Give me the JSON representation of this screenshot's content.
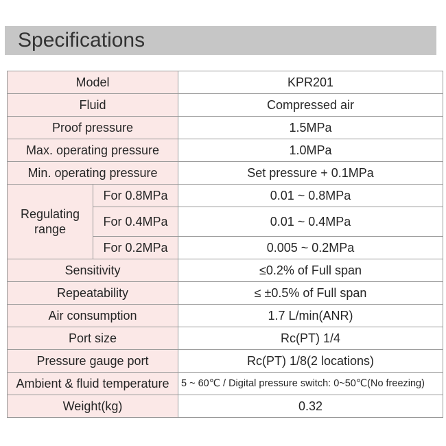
{
  "title": "Specifications",
  "colors": {
    "title-bar-bg": "#c6c6c6",
    "title-text": "#333333",
    "label-bg": "#fbe8e7",
    "value-bg": "#ffffff",
    "border": "#999999",
    "text": "#262626"
  },
  "spec_table": {
    "rows_top": [
      {
        "label": "Model",
        "value": "KPR201"
      },
      {
        "label": "Fluid",
        "value": "Compressed air"
      },
      {
        "label": "Proof pressure",
        "value": "1.5MPa"
      },
      {
        "label": "Max. operating pressure",
        "value": "1.0MPa"
      },
      {
        "label": "Min. operating pressure",
        "value": "Set pressure + 0.1MPa"
      }
    ],
    "regulating": {
      "group_label": "Regulating range",
      "rows": [
        {
          "label": "For 0.8MPa",
          "value": "0.01 ~ 0.8MPa"
        },
        {
          "label": "For 0.4MPa",
          "value": "0.01 ~ 0.4MPa"
        },
        {
          "label": "For 0.2MPa",
          "value": "0.005 ~ 0.2MPa"
        }
      ]
    },
    "rows_bottom": [
      {
        "label": "Sensitivity",
        "value": "≤0.2% of Full span"
      },
      {
        "label": "Repeatability",
        "value": "≤ ±0.5% of Full span"
      },
      {
        "label": "Air consumption",
        "value": "1.7 L/min(ANR)"
      },
      {
        "label": "Port size",
        "value": "Rc(PT) 1/4"
      },
      {
        "label": "Pressure gauge port",
        "value": "Rc(PT) 1/8(2 locations)"
      },
      {
        "label": "Ambient & fluid temperature",
        "value": "5 ~ 60℃ / Digital pressure switch: 0~50℃(No freezing)"
      },
      {
        "label": "Weight(kg)",
        "value": "0.32"
      }
    ]
  }
}
